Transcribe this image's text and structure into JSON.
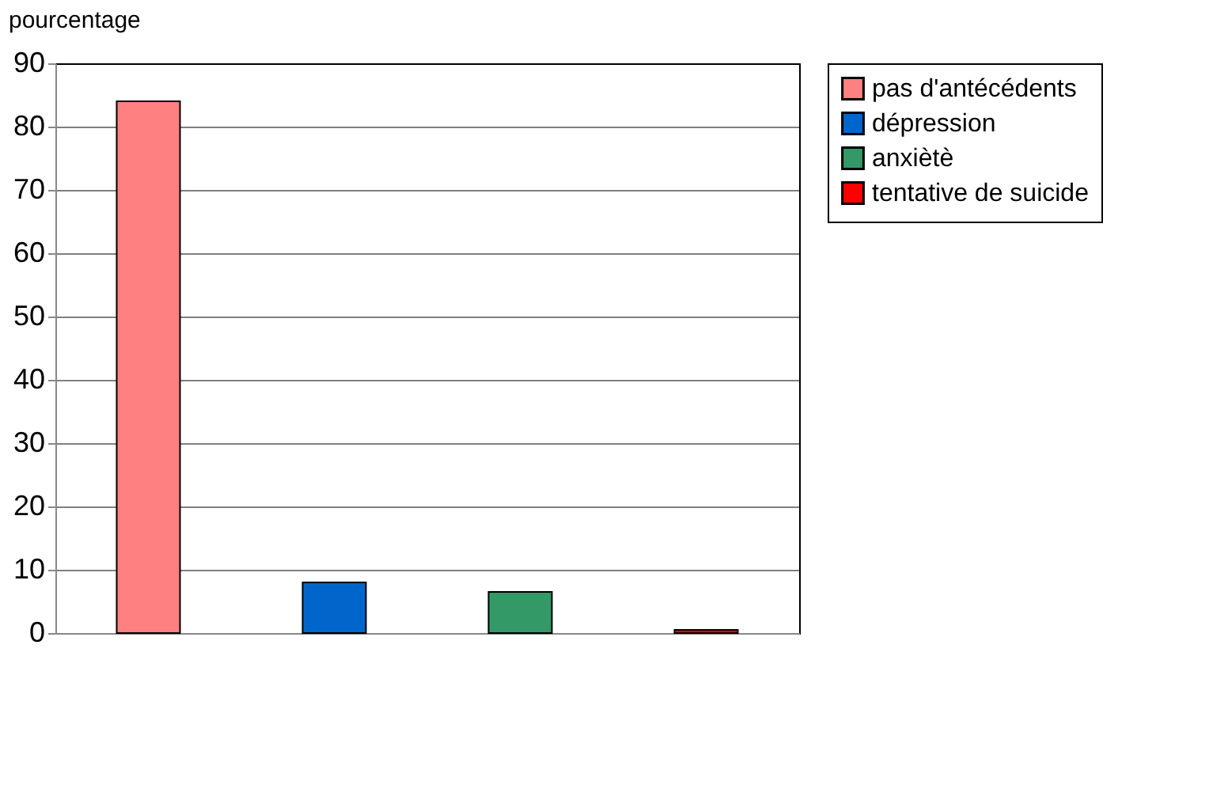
{
  "chart_data": {
    "type": "bar",
    "ylabel": "pourcentage",
    "categories": [
      null,
      null,
      null,
      null
    ],
    "series": [
      {
        "name": "pas d'antécédents",
        "color": "#ff8080",
        "values": [
          84,
          null,
          null,
          null
        ]
      },
      {
        "name": "dépression",
        "color": "#0066cc",
        "values": [
          null,
          8,
          null,
          null
        ]
      },
      {
        "name": "anxiètè",
        "color": "#339966",
        "values": [
          null,
          null,
          6.5,
          null
        ]
      },
      {
        "name": "tentative de suicide",
        "color": "#ff0000",
        "values": [
          null,
          null,
          null,
          0.5
        ]
      }
    ],
    "ylim": [
      0,
      90
    ],
    "yticks": [
      0,
      10,
      20,
      30,
      40,
      50,
      60,
      70,
      80,
      90
    ],
    "grid": "y",
    "legend": "top right"
  }
}
